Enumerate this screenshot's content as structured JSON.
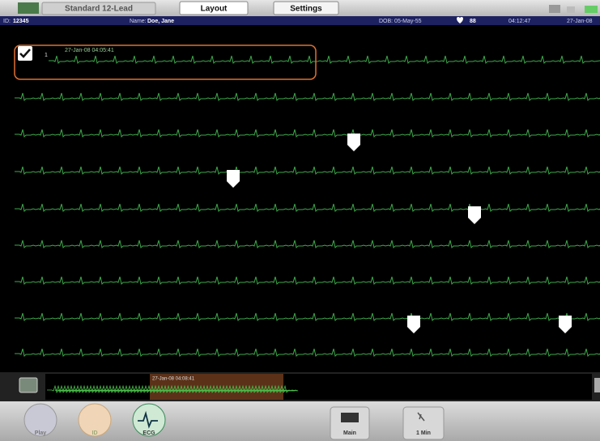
{
  "tabs": [
    "Standard 12-Lead",
    "Layout",
    "Settings"
  ],
  "patient": {
    "id_label": "ID:",
    "id": "12345",
    "name_label": "Name:",
    "name": "Doe, Jane",
    "dob": "DOB: 05-May-55",
    "heart_rate": "88",
    "time": "04:12:47",
    "date": "27-Jan-08"
  },
  "strip": {
    "index": "1",
    "timestamp": "27-Jan-08 04:05:41"
  },
  "overview": {
    "timestamp": "27-Jan-08 04:08:41"
  },
  "nav": [
    "Play",
    "ID",
    "ECG"
  ],
  "buttons": [
    "Main",
    "1 Min"
  ]
}
